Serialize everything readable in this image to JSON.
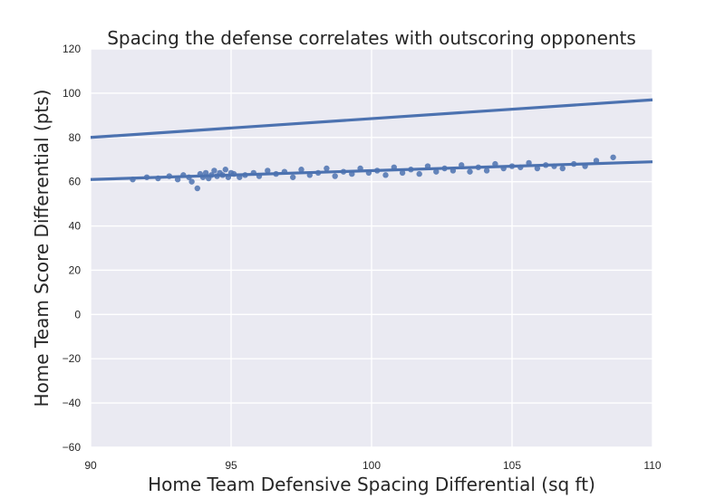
{
  "chart_data": {
    "type": "scatter",
    "title": "Spacing the defense correlates with outscoring opponents",
    "xlabel": "Home Team Defensive Spacing Differential (sq ft)",
    "ylabel": "Home Team Score Differential (pts)",
    "xlim": [
      90,
      110
    ],
    "ylim": [
      -60,
      120
    ],
    "xticks": [
      90,
      95,
      100,
      105,
      110
    ],
    "yticks": [
      -60,
      -40,
      -20,
      0,
      20,
      40,
      60,
      80,
      100,
      120
    ],
    "grid": true,
    "colors": {
      "background": "#eaeaf2",
      "series": "#4c72b0",
      "grid": "#ffffff"
    },
    "series": [
      {
        "type": "scatter",
        "x": [
          91.5,
          92.0,
          92.4,
          92.8,
          93.1,
          93.3,
          93.5,
          93.6,
          93.8,
          93.9,
          94.0,
          94.1,
          94.2,
          94.3,
          94.4,
          94.5,
          94.6,
          94.7,
          94.8,
          94.9,
          95.0,
          95.1,
          95.3,
          95.5,
          95.8,
          96.0,
          96.3,
          96.6,
          96.9,
          97.2,
          97.5,
          97.8,
          98.1,
          98.4,
          98.7,
          99.0,
          99.3,
          99.6,
          99.9,
          100.2,
          100.5,
          100.8,
          101.1,
          101.4,
          101.7,
          102.0,
          102.3,
          102.6,
          102.9,
          103.2,
          103.5,
          103.8,
          104.1,
          104.4,
          104.7,
          105.0,
          105.3,
          105.6,
          105.9,
          106.2,
          106.5,
          106.8,
          107.2,
          107.6,
          108.0,
          108.6
        ],
        "y": [
          61.0,
          62.0,
          61.5,
          62.5,
          61.0,
          63.0,
          62.0,
          60.0,
          57.0,
          63.5,
          62.0,
          64.0,
          61.5,
          63.0,
          65.0,
          62.5,
          64.0,
          63.0,
          65.5,
          62.0,
          64.0,
          63.5,
          62.0,
          63.0,
          64.0,
          62.5,
          65.0,
          63.5,
          64.5,
          62.0,
          65.5,
          63.0,
          64.0,
          66.0,
          62.5,
          64.5,
          63.5,
          66.0,
          64.0,
          65.0,
          63.0,
          66.5,
          64.0,
          65.5,
          63.5,
          67.0,
          64.5,
          66.0,
          65.0,
          67.5,
          64.5,
          66.5,
          65.0,
          68.0,
          66.0,
          67.0,
          66.5,
          68.5,
          66.0,
          67.5,
          67.0,
          66.0,
          68.0,
          67.0,
          69.5,
          71.0
        ]
      },
      {
        "type": "line",
        "x": [
          90,
          110
        ],
        "y": [
          80,
          97
        ]
      },
      {
        "type": "line",
        "x": [
          90,
          110
        ],
        "y": [
          61,
          69
        ]
      }
    ]
  }
}
